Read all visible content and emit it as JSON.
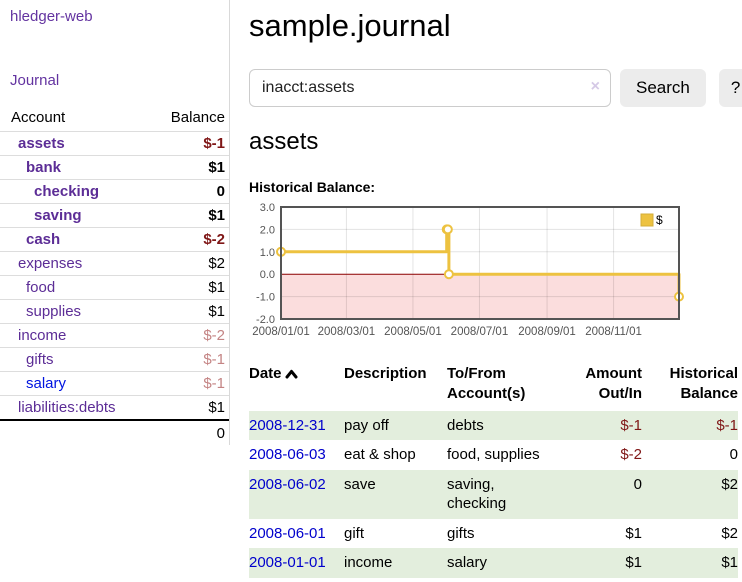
{
  "sidebar": {
    "app_title": "hledger-web",
    "journal_label": "Journal",
    "accounts_header": {
      "account": "Account",
      "balance": "Balance"
    },
    "accounts": [
      {
        "name": "assets",
        "indent": 1,
        "bold": true,
        "balance": "$-1",
        "balance_tone": "negative-strong",
        "link_tone": "purple"
      },
      {
        "name": "bank",
        "indent": 2,
        "bold": true,
        "balance": "$1",
        "balance_tone": "normal",
        "link_tone": "purple"
      },
      {
        "name": "checking",
        "indent": 3,
        "bold": true,
        "balance": "0",
        "balance_tone": "normal",
        "link_tone": "purple"
      },
      {
        "name": "saving",
        "indent": 3,
        "bold": true,
        "balance": "$1",
        "balance_tone": "normal",
        "link_tone": "purple"
      },
      {
        "name": "cash",
        "indent": 2,
        "bold": true,
        "balance": "$-2",
        "balance_tone": "negative-strong",
        "link_tone": "purple"
      },
      {
        "name": "expenses",
        "indent": 1,
        "bold": false,
        "balance": "$2",
        "balance_tone": "normal",
        "link_tone": "purple"
      },
      {
        "name": "food",
        "indent": 2,
        "bold": false,
        "balance": "$1",
        "balance_tone": "normal",
        "link_tone": "purple"
      },
      {
        "name": "supplies",
        "indent": 2,
        "bold": false,
        "balance": "$1",
        "balance_tone": "normal",
        "link_tone": "purple"
      },
      {
        "name": "income",
        "indent": 1,
        "bold": false,
        "balance": "$-2",
        "balance_tone": "negative-soft",
        "link_tone": "purple"
      },
      {
        "name": "gifts",
        "indent": 2,
        "bold": false,
        "balance": "$-1",
        "balance_tone": "negative-soft",
        "link_tone": "purple"
      },
      {
        "name": "salary",
        "indent": 2,
        "bold": false,
        "balance": "$-1",
        "balance_tone": "negative-soft",
        "link_tone": "blue"
      },
      {
        "name": "liabilities:debts",
        "indent": 1,
        "bold": false,
        "balance": "$1",
        "balance_tone": "normal",
        "link_tone": "purple"
      }
    ],
    "total": "0"
  },
  "main": {
    "title": "sample.journal",
    "search": {
      "value": "inacct:assets",
      "clear_icon": "×",
      "button_label": "Search",
      "help_label": "?"
    },
    "account_heading": "assets",
    "chart_label": "Historical Balance:"
  },
  "chart_data": {
    "type": "line",
    "title": "Historical Balance",
    "step": true,
    "series": [
      {
        "name": "$",
        "color": "#edc240",
        "points": [
          [
            "2008-01-01",
            1
          ],
          [
            "2008-06-01",
            2
          ],
          [
            "2008-06-02",
            2
          ],
          [
            "2008-06-03",
            0
          ],
          [
            "2008-12-31",
            -1
          ]
        ]
      }
    ],
    "x_range": [
      "2008-01-01",
      "2008-12-31"
    ],
    "ylim": [
      -2,
      3
    ],
    "y_ticks": [
      {
        "value": 3,
        "label": "3.0"
      },
      {
        "value": 2,
        "label": "2.0"
      },
      {
        "value": 1,
        "label": "1.0"
      },
      {
        "value": 0,
        "label": "0.0"
      },
      {
        "value": -1,
        "label": "-1.0"
      },
      {
        "value": -2,
        "label": "-2.0"
      }
    ],
    "x_ticks": [
      {
        "date": "2008-01-01",
        "label": "2008/01/01"
      },
      {
        "date": "2008-03-01",
        "label": "2008/03/01"
      },
      {
        "date": "2008-05-01",
        "label": "2008/05/01"
      },
      {
        "date": "2008-07-01",
        "label": "2008/07/01"
      },
      {
        "date": "2008-09-01",
        "label": "2008/09/01"
      },
      {
        "date": "2008-11-01",
        "label": "2008/11/01"
      }
    ],
    "legend_position": "top-right",
    "grid": true,
    "colors": {
      "negative_region": "#fbdddd",
      "zero_line": "#8b0000",
      "grid": "rgba(0,0,0,0.11)",
      "border": "#545454",
      "tick_text": "#545454",
      "marker_fill": "#ffffff"
    }
  },
  "register": {
    "headers": {
      "date": "Date",
      "description": "Description",
      "accounts": "To/From Account(s)",
      "amount": "Amount Out/In",
      "balance": "Historical Balance"
    },
    "sort": {
      "column": "date",
      "direction": "ascending"
    },
    "rows": [
      {
        "date": "2008-12-31",
        "description": "pay off",
        "accounts": "debts",
        "amount": "$-1",
        "amount_negative": true,
        "balance": "$-1",
        "balance_negative": true
      },
      {
        "date": "2008-06-03",
        "description": "eat & shop",
        "accounts": "food, supplies",
        "amount": "$-2",
        "amount_negative": true,
        "balance": "0",
        "balance_negative": false
      },
      {
        "date": "2008-06-02",
        "description": "save",
        "accounts": "saving, checking",
        "amount": "0",
        "amount_negative": false,
        "balance": "$2",
        "balance_negative": false
      },
      {
        "date": "2008-06-01",
        "description": "gift",
        "accounts": "gifts",
        "amount": "$1",
        "amount_negative": false,
        "balance": "$2",
        "balance_negative": false
      },
      {
        "date": "2008-01-01",
        "description": "income",
        "accounts": "salary",
        "amount": "$1",
        "amount_negative": false,
        "balance": "$1",
        "balance_negative": false
      }
    ]
  }
}
